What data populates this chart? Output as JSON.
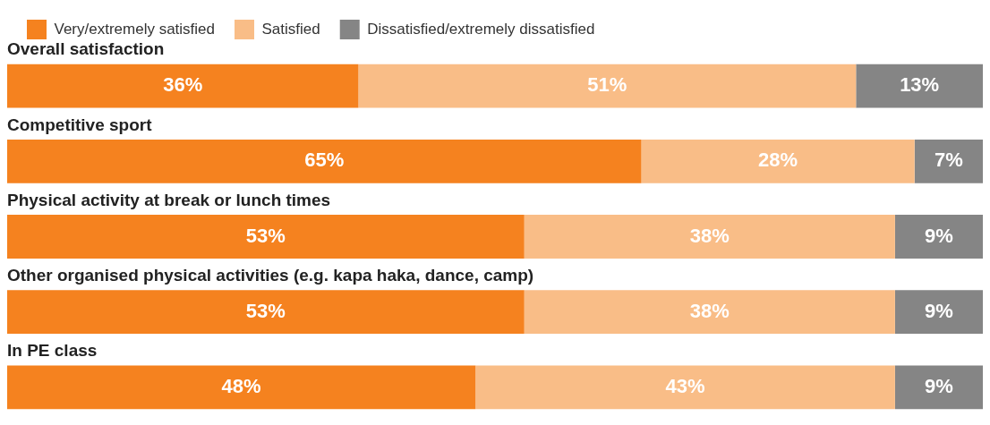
{
  "chart_data": {
    "type": "bar",
    "orientation": "horizontal",
    "stacked": true,
    "legend": "top left",
    "categories": [
      "Overall satisfaction",
      "Competitive sport",
      "Physical activity at break or lunch times",
      "Other organised physical activities (e.g. kapa haka, dance, camp)",
      "In PE class"
    ],
    "series": [
      {
        "name": "Very/extremely satisfied",
        "color": "#f5821f",
        "values": [
          36,
          65,
          53,
          53,
          48
        ],
        "value_labels": [
          "36%",
          "65%",
          "53%",
          "53%",
          "48%"
        ]
      },
      {
        "name": "Satisfied",
        "color": "#f9bd87",
        "values": [
          51,
          28,
          38,
          38,
          43
        ],
        "value_labels": [
          "51%",
          "28%",
          "38%",
          "38%",
          "43%"
        ]
      },
      {
        "name": "Dissatisfied/extremely dissatisfied",
        "color": "#858585",
        "values": [
          13,
          7,
          9,
          9,
          9
        ],
        "value_labels": [
          "13%",
          "7%",
          "9%",
          "9%",
          "9%"
        ]
      }
    ]
  }
}
